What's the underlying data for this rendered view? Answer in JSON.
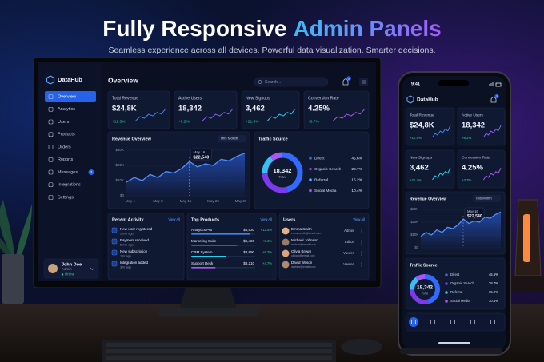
{
  "header": {
    "title_part1": "Fully Responsive",
    "title_part2": "Admin Panels",
    "subtitle": "Seamless experience across all devices. Powerful data visualization. Smarter decisions."
  },
  "desktop": {
    "brand": "DataHub",
    "nav": [
      {
        "label": "Overview"
      },
      {
        "label": "Analytics"
      },
      {
        "label": "Users"
      },
      {
        "label": "Products"
      },
      {
        "label": "Orders"
      },
      {
        "label": "Reports"
      },
      {
        "label": "Messages",
        "badge": 3
      },
      {
        "label": "Integrations"
      },
      {
        "label": "Settings"
      }
    ],
    "user": {
      "name": "John Doe",
      "role": "Admin",
      "status": "Online"
    },
    "page_title": "Overview",
    "search": "Search...",
    "notifications": 3,
    "kpis": [
      {
        "title": "Total Revenue",
        "value": "$24,8K",
        "change": "+12.5%"
      },
      {
        "title": "Active Users",
        "value": "18,342",
        "change": "+8.2%"
      },
      {
        "title": "New Signups",
        "value": "3,462",
        "change": "+21.4%"
      },
      {
        "title": "Conversion Rate",
        "value": "4.25%",
        "change": "+3.7%"
      }
    ],
    "revenue": {
      "title": "Revenue Overview",
      "period": "This Month",
      "xlim": [
        0,
        30
      ],
      "ylim": [
        0,
        30
      ],
      "yticks": [
        {
          "value": 0,
          "label": "$0"
        },
        {
          "value": 10,
          "label": "$10K"
        },
        {
          "value": 20,
          "label": "$20K"
        },
        {
          "value": 30,
          "label": "$30K"
        }
      ],
      "xticks": [
        {
          "value": 1,
          "label": "May 1"
        },
        {
          "value": 8,
          "label": "May 8"
        },
        {
          "value": 15,
          "label": "May 15"
        },
        {
          "value": 22,
          "label": "May 22"
        },
        {
          "value": 29,
          "label": "May 29"
        }
      ],
      "x": [
        0,
        2,
        4,
        6,
        8,
        10,
        12,
        14,
        16,
        18,
        20,
        22,
        24,
        26,
        28,
        30
      ],
      "values": [
        9,
        12,
        10,
        14,
        12,
        16,
        15,
        18,
        22.5,
        19,
        21,
        20,
        24,
        23,
        26,
        28
      ],
      "tooltip": {
        "date": "May 16",
        "value": "$22,540"
      }
    },
    "traffic": {
      "title": "Traffic Source",
      "total": "18,342",
      "total_label": "Total",
      "categories": [
        "Direct",
        "Organic Search",
        "Referral",
        "Social Media"
      ],
      "values": [
        45.6,
        28.7,
        15.2,
        10.4
      ],
      "value_labels": [
        "45.6%",
        "28.7%",
        "15.2%",
        "10.4%"
      ],
      "colors": [
        "#2f6bff",
        "#7c3aed",
        "#38bdf8",
        "#a855f7"
      ]
    },
    "activity": {
      "title": "Recent Activity",
      "view_all": "View All",
      "items": [
        {
          "text": "New user registered",
          "time": "2 min ago"
        },
        {
          "text": "Payment received",
          "time": "5 min ago"
        },
        {
          "text": "New subscription",
          "time": "1 hr ago"
        },
        {
          "text": "Integration added",
          "time": "3 hr ago"
        }
      ]
    },
    "products": {
      "title": "Top Products",
      "view_all": "View All",
      "items": [
        {
          "name": "Analytics Pro",
          "revenue": "$8,530",
          "change": "+12.5%"
        },
        {
          "name": "Marketing Suite",
          "revenue": "$6,420",
          "change": "+8.1%"
        },
        {
          "name": "CRM System",
          "revenue": "$4,890",
          "change": "+6.3%"
        },
        {
          "name": "Support Desk",
          "revenue": "$3,210",
          "change": "+4.7%"
        }
      ]
    },
    "users": {
      "title": "Users",
      "view_all": "View All",
      "items": [
        {
          "name": "Emma Smith",
          "email": "emma.smith@email.com",
          "role": "Admin"
        },
        {
          "name": "Michael Johnson",
          "email": "michael@email.com",
          "role": "Editor"
        },
        {
          "name": "Olivia Brown",
          "email": "olivia.b@email.com",
          "role": "Viewer"
        },
        {
          "name": "David Wilson",
          "email": "david.w@email.com",
          "role": "Viewer"
        }
      ]
    }
  },
  "phone": {
    "time": "9:41",
    "brand": "DataHub",
    "notifications": 3,
    "kpis": [
      {
        "title": "Total Revenue",
        "value": "$24,8K",
        "change": "+12.5%"
      },
      {
        "title": "Active Users",
        "value": "18,342",
        "change": "+8.2%"
      },
      {
        "title": "New Signups",
        "value": "3,462",
        "change": "+21.4%"
      },
      {
        "title": "Conversion Rate",
        "value": "4.25%",
        "change": "+3.7%"
      }
    ],
    "revenue": {
      "title": "Revenue Overview",
      "period": "This Month",
      "xlim": [
        0,
        30
      ],
      "ylim": [
        0,
        30
      ],
      "yticks": [
        {
          "value": 0,
          "label": "$0"
        },
        {
          "value": 10,
          "label": "$10K"
        },
        {
          "value": 20,
          "label": "$20K"
        },
        {
          "value": 30,
          "label": "$30K"
        }
      ],
      "x": [
        0,
        2,
        4,
        6,
        8,
        10,
        12,
        14,
        16,
        18,
        20,
        22,
        24,
        26,
        28,
        30
      ],
      "values": [
        9,
        12,
        10,
        14,
        12,
        16,
        15,
        18,
        22.5,
        19,
        21,
        20,
        24,
        23,
        26,
        28
      ],
      "tooltip": {
        "date": "May 16",
        "value": "$22,540"
      }
    },
    "traffic": {
      "title": "Traffic Source",
      "total": "18,342",
      "total_label": "Total",
      "categories": [
        "Direct",
        "Organic Search",
        "Referral",
        "Social Media"
      ],
      "values": [
        45.6,
        28.7,
        15.2,
        10.4
      ],
      "value_labels": [
        "45.6%",
        "28.7%",
        "15.2%",
        "10.4%"
      ],
      "colors": [
        "#2f6bff",
        "#7c3aed",
        "#38bdf8",
        "#a855f7"
      ]
    }
  }
}
